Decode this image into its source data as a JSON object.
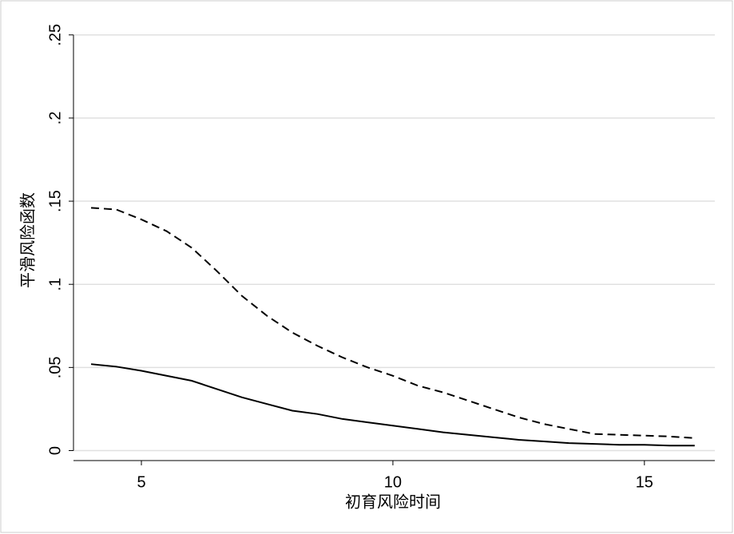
{
  "chart_data": {
    "type": "line",
    "x_label": "初育风险时间",
    "y_label": "平滑风险函数",
    "x": [
      4,
      4.5,
      5,
      5.5,
      6,
      6.5,
      7,
      7.5,
      8,
      8.5,
      9,
      9.5,
      10,
      10.5,
      11,
      11.5,
      12,
      12.5,
      13,
      13.5,
      14,
      14.5,
      15,
      15.5,
      16
    ],
    "series": [
      {
        "color": "#000000",
        "dash": "solid",
        "values": [
          0.052,
          0.0505,
          0.048,
          0.045,
          0.042,
          0.037,
          0.032,
          0.028,
          0.024,
          0.022,
          0.019,
          0.017,
          0.015,
          0.013,
          0.011,
          0.0095,
          0.008,
          0.0065,
          0.0055,
          0.0045,
          0.004,
          0.0035,
          0.0035,
          0.003,
          0.003
        ]
      },
      {
        "color": "#000000",
        "dash": "dashed",
        "values": [
          0.146,
          0.145,
          0.139,
          0.132,
          0.122,
          0.108,
          0.093,
          0.081,
          0.071,
          0.063,
          0.056,
          0.05,
          0.045,
          0.039,
          0.035,
          0.03,
          0.025,
          0.02,
          0.016,
          0.013,
          0.01,
          0.0095,
          0.009,
          0.0085,
          0.0075
        ]
      }
    ],
    "xlim": [
      3.65,
      16.4
    ],
    "ylim": [
      -0.006,
      0.259
    ],
    "xticks": [
      5,
      10,
      15
    ],
    "yticks": [
      0,
      {
        "value": 0.05,
        "label": ".05"
      },
      {
        "value": 0.1,
        "label": ".1"
      },
      {
        "value": 0.15,
        "label": ".15"
      },
      {
        "value": 0.2,
        "label": ".2"
      },
      {
        "value": 0.25,
        "label": ".25"
      }
    ],
    "grid": true
  }
}
